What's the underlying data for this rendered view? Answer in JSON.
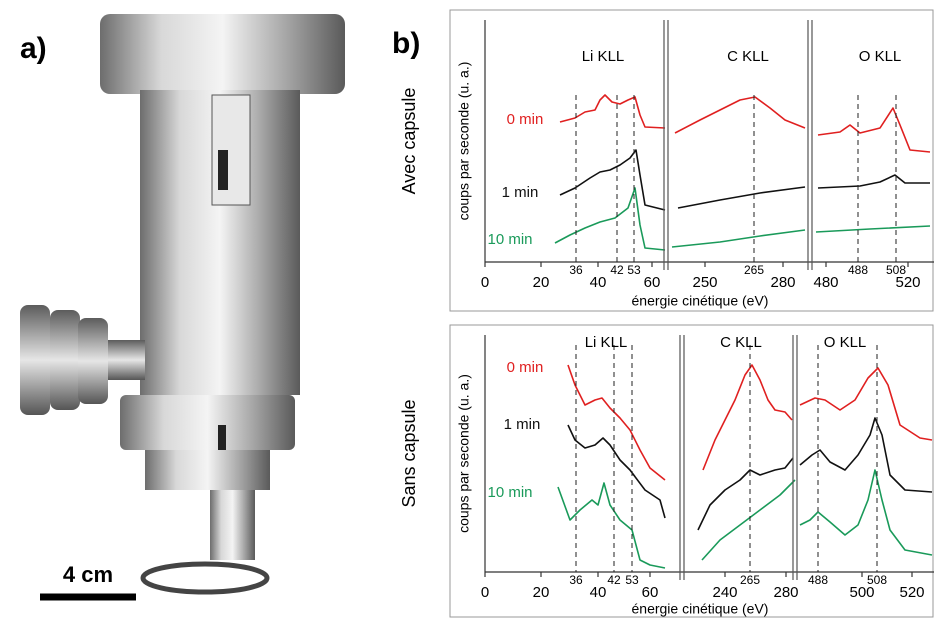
{
  "panel_a": {
    "label": "a)",
    "scale_bar": "4 cm"
  },
  "panel_b": {
    "label": "b)",
    "plots": [
      {
        "condition": "Avec capsule",
        "y_label": "coups par seconde (u. a.)",
        "x_label": "énergie cinétique (eV)",
        "sections": [
          "Li KLL",
          "C KLL",
          "O KLL"
        ],
        "times": [
          "0 min",
          "1 min",
          "10 min"
        ],
        "ticks": [
          "0",
          "20",
          "40",
          "60",
          "250",
          "280",
          "480",
          "520"
        ],
        "peak_labels": [
          "36",
          "42",
          "53",
          "265",
          "488",
          "508"
        ]
      },
      {
        "condition": "Sans capsule",
        "y_label": "coups par seconde (u. a.)",
        "x_label": "énergie cinétique (eV)",
        "sections": [
          "Li KLL",
          "C KLL",
          "O KLL"
        ],
        "times": [
          "0 min",
          "1 min",
          "10 min"
        ],
        "ticks": [
          "0",
          "20",
          "40",
          "60",
          "240",
          "280",
          "500",
          "520"
        ],
        "peak_labels": [
          "36",
          "42",
          "53",
          "265",
          "488",
          "508"
        ]
      }
    ]
  }
}
